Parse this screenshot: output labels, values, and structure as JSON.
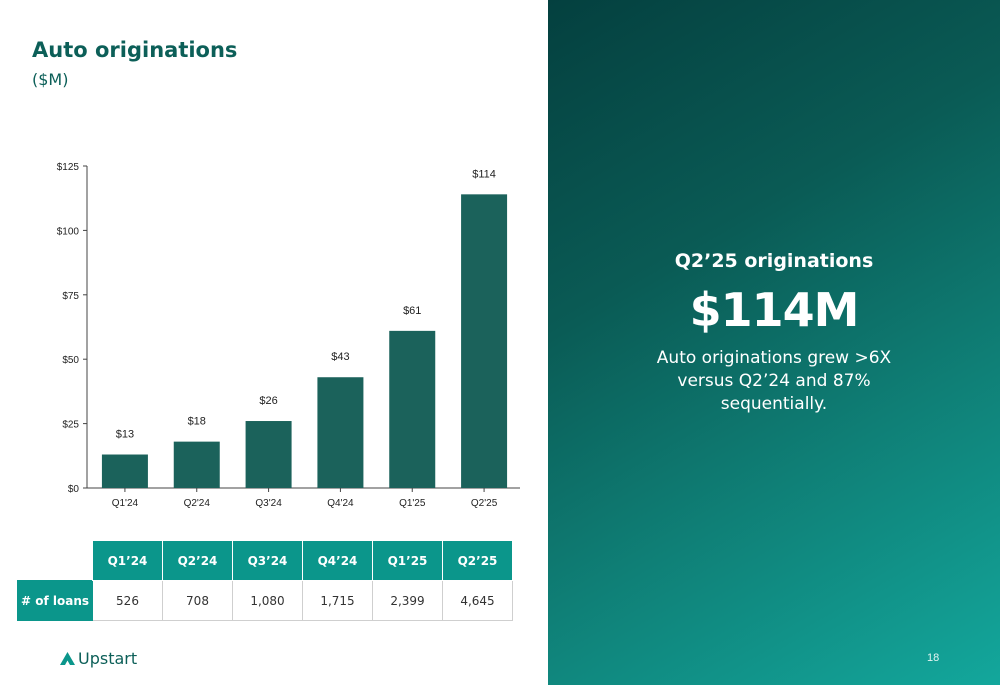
{
  "slide": {
    "title": "Auto originations",
    "subtitle": "($M)",
    "page_number": "18",
    "brand": "Upstart",
    "colors": {
      "bar": "#1b625b",
      "accent": "#0b968b",
      "title": "#0c5f58"
    }
  },
  "chart_data": {
    "type": "bar",
    "categories": [
      "Q1'24",
      "Q2'24",
      "Q3'24",
      "Q4'24",
      "Q1'25",
      "Q2'25"
    ],
    "values": [
      13,
      18,
      26,
      43,
      61,
      114
    ],
    "value_labels": [
      "$13",
      "$18",
      "$26",
      "$43",
      "$61",
      "$114"
    ],
    "ylim": [
      0,
      125
    ],
    "yticks": [
      0,
      25,
      50,
      75,
      100,
      125
    ],
    "ytick_labels": [
      "$0",
      "$25",
      "$50",
      "$75",
      "$100",
      "$125"
    ],
    "grid": false,
    "legend": "none"
  },
  "table": {
    "headers": [
      "Q1’24",
      "Q2’24",
      "Q3’24",
      "Q4’24",
      "Q1’25",
      "Q2’25"
    ],
    "row_label": "# of loans",
    "values": [
      "526",
      "708",
      "1,080",
      "1,715",
      "2,399",
      "4,645"
    ]
  },
  "panel": {
    "heading": "Q2’25 originations",
    "big_number": "$114M",
    "text": "Auto originations grew >6X versus Q2’24 and 87% sequentially."
  }
}
